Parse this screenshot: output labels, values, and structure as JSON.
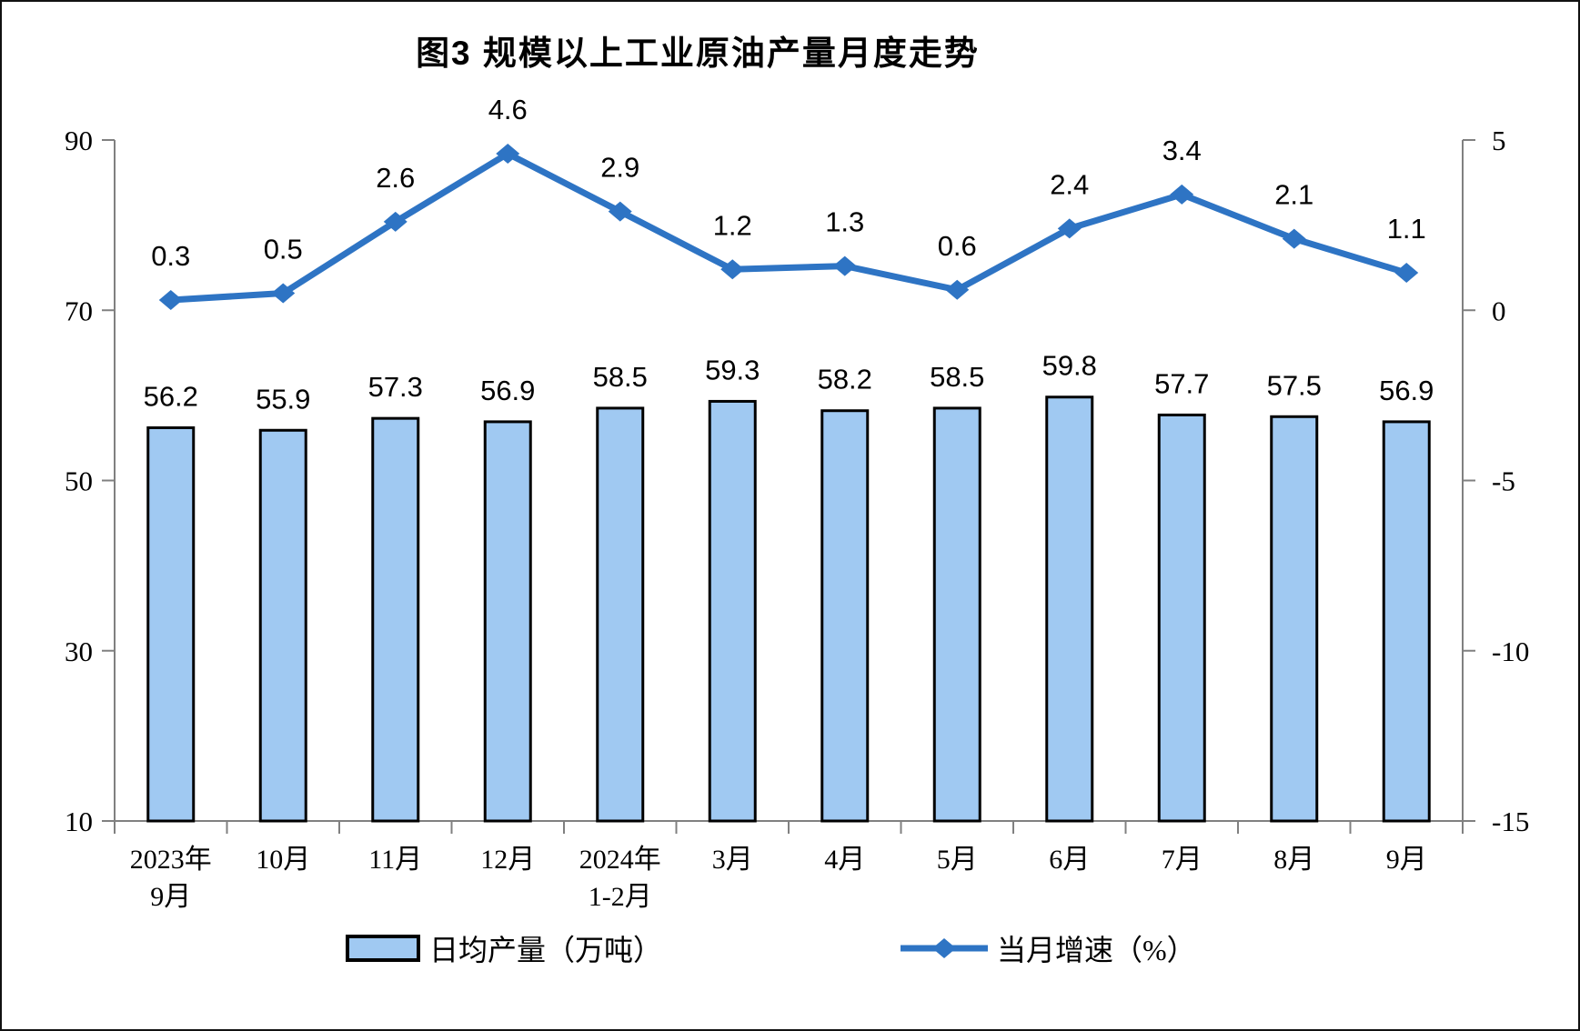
{
  "title": "图3 规模以上工业原油产量月度走势",
  "chart_data": {
    "type": "bar",
    "subtype": "combo-bar-line-dual-axis",
    "title": "图3 规模以上工业原油产量月度走势",
    "categories": [
      [
        "2023年",
        "9月"
      ],
      [
        "10月"
      ],
      [
        "11月"
      ],
      [
        "12月"
      ],
      [
        "2024年",
        "1-2月"
      ],
      [
        "3月"
      ],
      [
        "4月"
      ],
      [
        "5月"
      ],
      [
        "6月"
      ],
      [
        "7月"
      ],
      [
        "8月"
      ],
      [
        "9月"
      ]
    ],
    "series": [
      {
        "name": "日均产量（万吨）",
        "type": "bar",
        "axis": "left",
        "values": [
          56.2,
          55.9,
          57.3,
          56.9,
          58.5,
          59.3,
          58.2,
          58.5,
          59.8,
          57.7,
          57.5,
          56.9
        ]
      },
      {
        "name": "当月增速（%）",
        "type": "line",
        "axis": "right",
        "values": [
          0.3,
          0.5,
          2.6,
          4.6,
          2.9,
          1.2,
          1.3,
          0.6,
          2.4,
          3.4,
          2.1,
          1.1
        ]
      }
    ],
    "left_axis": {
      "min": 10,
      "max": 90,
      "ticks": [
        90,
        70,
        50,
        30,
        10
      ]
    },
    "right_axis": {
      "min": -15,
      "max": 5,
      "ticks": [
        5,
        0,
        -5,
        -10,
        -15
      ]
    },
    "grid": "off",
    "legend_position": "bottom",
    "colors": {
      "bar_fill": "#A0C9F2",
      "bar_border": "#000000",
      "line": "#2E74C4",
      "axis": "#808080",
      "text": "#000000",
      "background": "#FFFFFF"
    }
  },
  "legend": [
    {
      "label": "日均产量（万吨）",
      "swatch": "bar"
    },
    {
      "label": "当月增速（%）",
      "swatch": "line-diamond"
    }
  ]
}
